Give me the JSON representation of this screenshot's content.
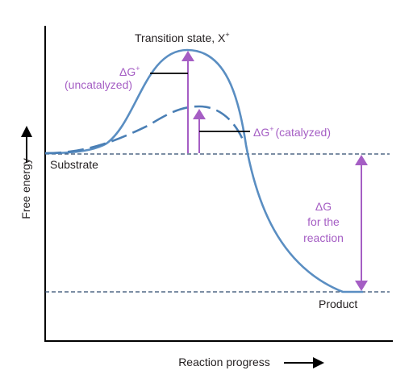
{
  "colors": {
    "curve": "#5a8ec2",
    "catalyzed_curve": "#4a7fb5",
    "purple": "#a55ec4",
    "text": "#231f20",
    "axis": "#000000",
    "reference_line": "#2f4a6e"
  },
  "axes": {
    "y_label": "Free energy",
    "x_label": "Reaction progress"
  },
  "labels": {
    "transition_state": "Transition state, X",
    "transition_state_sup": "+",
    "substrate": "Substrate",
    "product": "Product",
    "uncatalyzed_delta": "ΔG",
    "uncatalyzed_sup": "+",
    "uncatalyzed_text": "(uncatalyzed)",
    "catalyzed_delta": "ΔG",
    "catalyzed_sup": "+",
    "catalyzed_text": "(catalyzed)",
    "reaction_line1": "ΔG",
    "reaction_line2": "for the",
    "reaction_line3": "reaction"
  }
}
